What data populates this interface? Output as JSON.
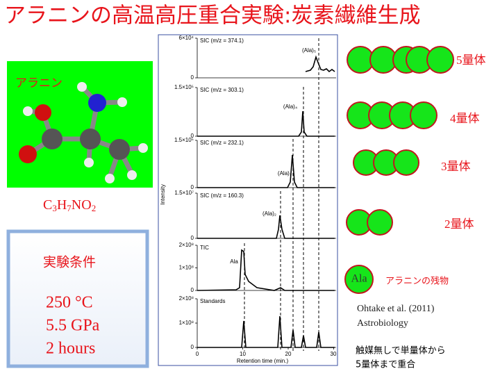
{
  "title": "アラニンの高温高圧重合実験:炭素繊維生成",
  "molecule": {
    "name": "アラニン",
    "formula": "C3H7NO2"
  },
  "conditions": {
    "heading": "実験条件",
    "lines": [
      "250 °C",
      "5.5 GPa",
      "2 hours"
    ]
  },
  "figure": {
    "y_axis_title": "Intensity",
    "x_axis_title": "Retention time (min.)",
    "xticks": [
      "0",
      "10",
      "20",
      "30"
    ],
    "panels": [
      {
        "label": "SIC (m/z = 374.1)",
        "ticks": [
          "6×10⁴",
          "0"
        ],
        "peak": "(Ala)₅"
      },
      {
        "label": "SIC (m/z = 303.1)",
        "ticks": [
          "1.5×10⁵",
          "0"
        ],
        "peak": "(Ala)₄"
      },
      {
        "label": "SIC (m/z = 232.1)",
        "ticks": [
          "1.5×10⁵",
          "0"
        ],
        "peak": "(Ala)₃"
      },
      {
        "label": "SIC (m/z = 160.3)",
        "ticks": [
          "1.5×10⁷",
          "0"
        ],
        "peak": "(Ala)₂"
      },
      {
        "label": "TIC",
        "ticks": [
          "2×10⁸",
          "1×10⁸",
          "0"
        ],
        "peak": "Ala"
      },
      {
        "label": "Standards",
        "ticks": [
          "2×10⁸",
          "1×10⁸",
          "0"
        ]
      }
    ]
  },
  "oligomers": [
    "5量体",
    "4量体",
    "3量体",
    "2量体"
  ],
  "monomer": {
    "symbol": "Ala",
    "label": "アラニンの残物"
  },
  "citation": [
    "Ohtake et al. (2011)",
    "Astrobiology"
  ],
  "note": [
    "触媒無しで単量体から",
    "5量体まで重合"
  ]
}
